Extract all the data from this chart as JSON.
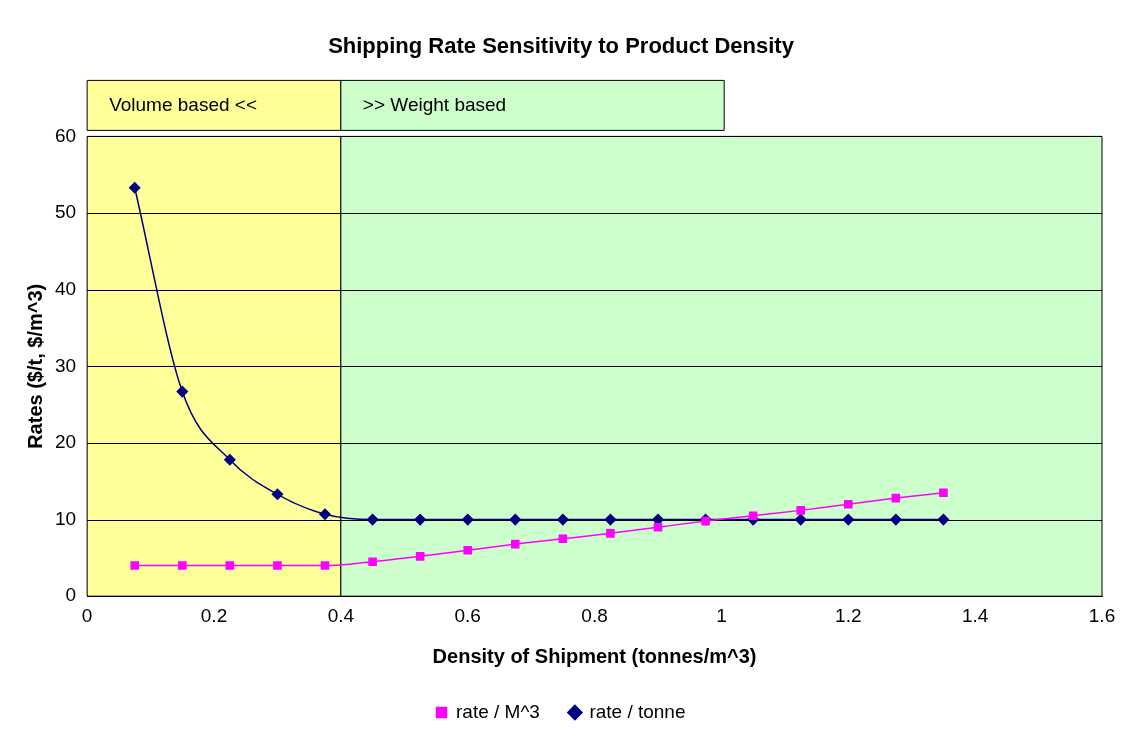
{
  "chart_data": {
    "type": "line",
    "title": "Shipping Rate Sensitivity to Product Density",
    "xlabel": "Density of Shipment (tonnes/m^3)",
    "ylabel": "Rates ($/t, $/m^3)",
    "x": [
      0.075,
      0.15,
      0.225,
      0.3,
      0.375,
      0.45,
      0.525,
      0.6,
      0.675,
      0.75,
      0.825,
      0.9,
      0.975,
      1.05,
      1.125,
      1.2,
      1.275,
      1.35
    ],
    "series": [
      {
        "name": "rate / tonne",
        "color": "#000080",
        "marker": "diamond",
        "values": [
          53.3,
          26.7,
          17.8,
          13.3,
          10.7,
          10,
          10,
          10,
          10,
          10,
          10,
          10,
          10,
          10,
          10,
          10,
          10,
          10
        ]
      },
      {
        "name": "rate / M^3",
        "color": "#ff00ff",
        "marker": "square",
        "values": [
          4,
          4,
          4,
          4,
          4,
          4.5,
          5.2,
          6,
          6.8,
          7.5,
          8.2,
          9,
          9.8,
          10.5,
          11.2,
          12,
          12.8,
          13.5
        ]
      }
    ],
    "bands": [
      {
        "axis": "x",
        "from": 0,
        "to": 0.4,
        "label": "Volume based <<",
        "color": "#ffff99"
      },
      {
        "axis": "x",
        "from": 0.4,
        "to": 1.6,
        "label": ">> Weight based",
        "color": "#ccffcc"
      }
    ],
    "xlim": [
      0,
      1.6
    ],
    "xticks": [
      0,
      0.2,
      0.4,
      0.6,
      0.8,
      1,
      1.2,
      1.4,
      1.6
    ],
    "ylim": [
      0,
      60
    ],
    "yticks": [
      0,
      10,
      20,
      30,
      40,
      50,
      60
    ],
    "grid": "y",
    "legend": "bottom"
  }
}
